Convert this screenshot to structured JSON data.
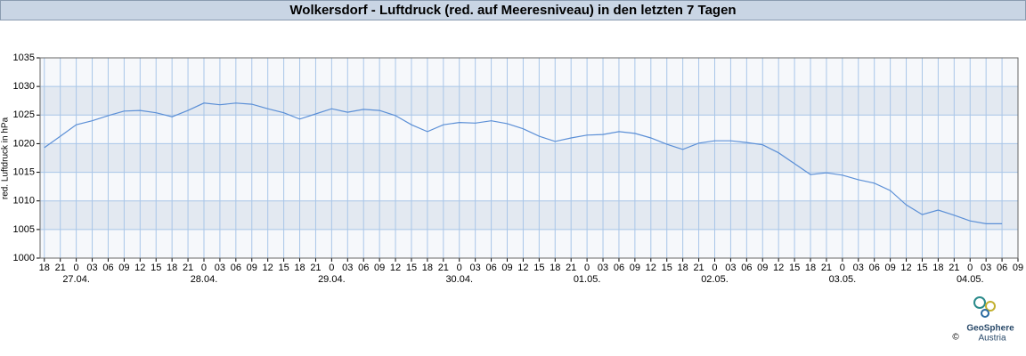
{
  "chart_data": {
    "type": "line",
    "title": "Wolkersdorf - Luftdruck (red. auf Meeresniveau) in den letzten 7 Tagen",
    "y_label": "red. Luftdruck in hPa",
    "x": [
      18,
      21,
      24,
      27,
      30,
      33,
      36,
      39,
      42,
      45,
      48,
      51,
      54,
      57,
      60,
      63,
      66,
      69,
      72,
      75,
      78,
      81,
      84,
      87,
      90,
      93,
      96,
      99,
      102,
      105,
      108,
      111,
      114,
      117,
      120,
      123,
      126,
      129,
      132,
      135,
      138,
      141,
      144,
      147,
      150,
      153,
      156,
      159,
      162,
      165,
      168,
      171,
      174,
      177,
      180,
      183,
      186,
      189,
      192,
      195,
      198
    ],
    "series": [
      {
        "name": "red. Luftdruck",
        "color": "#5b8fd6",
        "values": [
          1019.3,
          1021.3,
          1023.3,
          1024.0,
          1024.9,
          1025.7,
          1025.8,
          1025.4,
          1024.7,
          1025.8,
          1027.1,
          1026.8,
          1027.1,
          1026.9,
          1026.1,
          1025.4,
          1024.3,
          1025.2,
          1026.1,
          1025.5,
          1026.0,
          1025.8,
          1024.9,
          1023.3,
          1022.1,
          1023.3,
          1023.7,
          1023.6,
          1024.0,
          1023.5,
          1022.6,
          1021.3,
          1020.4,
          1021.0,
          1021.5,
          1021.6,
          1022.1,
          1021.8,
          1021.0,
          1019.9,
          1019.0,
          1020.1,
          1020.5,
          1020.5,
          1020.2,
          1019.8,
          1018.4,
          1016.5,
          1014.6,
          1014.9,
          1014.5,
          1013.7,
          1013.1,
          1011.8,
          1009.3,
          1007.6,
          1008.4,
          1007.5,
          1006.5,
          1006.0,
          1006.0
        ]
      }
    ],
    "xlim": [
      17.2,
      201
    ],
    "xticks": [
      18,
      21,
      {
        "value": 24,
        "label": "0"
      },
      {
        "value": 27,
        "label": "03"
      },
      {
        "value": 30,
        "label": "06"
      },
      {
        "value": 33,
        "label": "09"
      },
      {
        "value": 36,
        "label": "12"
      },
      {
        "value": 39,
        "label": "15"
      },
      {
        "value": 42,
        "label": "18"
      },
      {
        "value": 45,
        "label": "21"
      },
      {
        "value": 48,
        "label": "0"
      },
      {
        "value": 51,
        "label": "03"
      },
      {
        "value": 54,
        "label": "06"
      },
      {
        "value": 57,
        "label": "09"
      },
      {
        "value": 60,
        "label": "12"
      },
      {
        "value": 63,
        "label": "15"
      },
      {
        "value": 66,
        "label": "18"
      },
      {
        "value": 69,
        "label": "21"
      },
      {
        "value": 72,
        "label": "0"
      },
      {
        "value": 75,
        "label": "03"
      },
      {
        "value": 78,
        "label": "06"
      },
      {
        "value": 81,
        "label": "09"
      },
      {
        "value": 84,
        "label": "12"
      },
      {
        "value": 87,
        "label": "15"
      },
      {
        "value": 90,
        "label": "18"
      },
      {
        "value": 93,
        "label": "21"
      },
      {
        "value": 96,
        "label": "0"
      },
      {
        "value": 99,
        "label": "03"
      },
      {
        "value": 102,
        "label": "06"
      },
      {
        "value": 105,
        "label": "09"
      },
      {
        "value": 108,
        "label": "12"
      },
      {
        "value": 111,
        "label": "15"
      },
      {
        "value": 114,
        "label": "18"
      },
      {
        "value": 117,
        "label": "21"
      },
      {
        "value": 120,
        "label": "0"
      },
      {
        "value": 123,
        "label": "03"
      },
      {
        "value": 126,
        "label": "06"
      },
      {
        "value": 129,
        "label": "09"
      },
      {
        "value": 132,
        "label": "12"
      },
      {
        "value": 135,
        "label": "15"
      },
      {
        "value": 138,
        "label": "18"
      },
      {
        "value": 141,
        "label": "21"
      },
      {
        "value": 144,
        "label": "0"
      },
      {
        "value": 147,
        "label": "03"
      },
      {
        "value": 150,
        "label": "06"
      },
      {
        "value": 153,
        "label": "09"
      },
      {
        "value": 156,
        "label": "12"
      },
      {
        "value": 159,
        "label": "15"
      },
      {
        "value": 162,
        "label": "18"
      },
      {
        "value": 165,
        "label": "21"
      },
      {
        "value": 168,
        "label": "0"
      },
      {
        "value": 171,
        "label": "03"
      },
      {
        "value": 174,
        "label": "06"
      },
      {
        "value": 177,
        "label": "09"
      },
      {
        "value": 180,
        "label": "12"
      },
      {
        "value": 183,
        "label": "15"
      },
      {
        "value": 186,
        "label": "18"
      },
      {
        "value": 189,
        "label": "21"
      },
      {
        "value": 192,
        "label": "0"
      },
      {
        "value": 195,
        "label": "03"
      },
      {
        "value": 198,
        "label": "06"
      },
      {
        "value": 201,
        "label": "09"
      }
    ],
    "date_labels": [
      "27.04.",
      "28.04.",
      "29.04.",
      "30.04.",
      "01.05.",
      "02.05.",
      "03.05.",
      "04.05."
    ],
    "ylim": [
      1000,
      1035
    ],
    "yticks": [
      1000,
      1005,
      1010,
      1015,
      1020,
      1025,
      1030,
      1035
    ],
    "grid": true
  },
  "logo": {
    "name": "GeoSphere",
    "sub": "Austria",
    "copyright": "©"
  }
}
